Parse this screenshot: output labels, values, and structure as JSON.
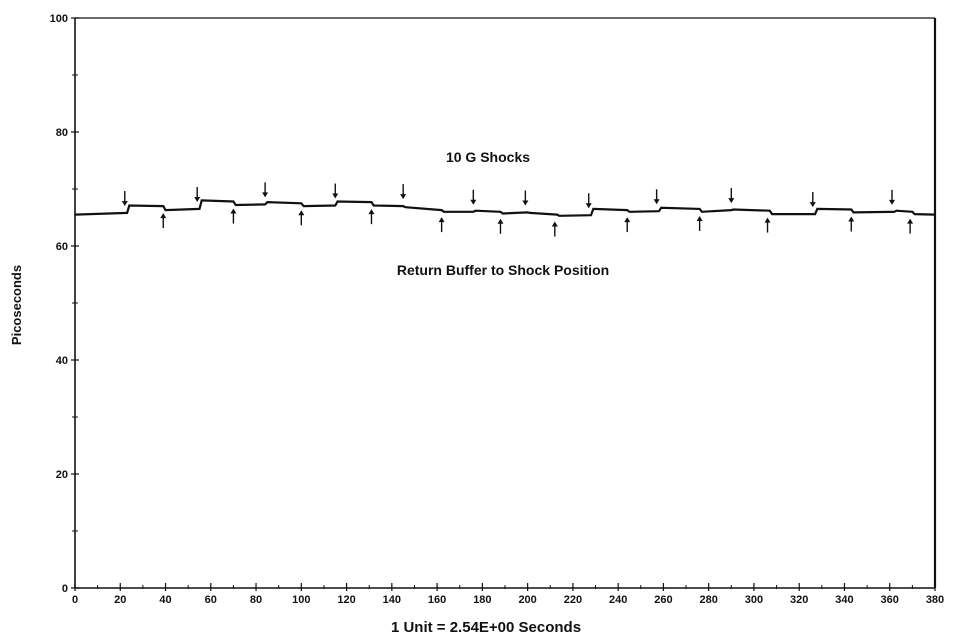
{
  "chart_data": {
    "type": "line",
    "title": "",
    "xlabel": "1 Unit = 2.54E+00 Seconds",
    "ylabel": "Picoseconds",
    "xlim": [
      0,
      380
    ],
    "ylim": [
      0,
      100
    ],
    "x_ticks": [
      "0",
      "20",
      "40",
      "60",
      "80",
      "100",
      "120",
      "140",
      "160",
      "180",
      "200",
      "220",
      "240",
      "260",
      "280",
      "300",
      "320",
      "340",
      "360",
      "380"
    ],
    "y_ticks": [
      "0",
      "20",
      "40",
      "60",
      "80",
      "100"
    ],
    "grid": false,
    "annotations": {
      "shocks": "10 G Shocks",
      "return": "Return Buffer to Shock Position"
    },
    "series": [
      {
        "x": [
          0,
          23,
          24,
          39,
          40,
          55,
          56,
          70,
          71,
          84,
          85,
          100,
          101,
          115,
          116,
          131,
          132,
          145,
          146,
          162,
          163,
          176,
          177,
          188,
          189,
          200,
          201,
          213,
          214,
          228,
          229,
          244,
          245,
          258,
          259,
          276,
          277,
          290,
          291,
          307,
          308,
          327,
          328,
          343,
          344,
          362,
          363,
          370,
          371,
          380
        ],
        "y": [
          65.5,
          65.8,
          67.1,
          67.0,
          66.3,
          66.5,
          68.0,
          67.8,
          67.2,
          67.3,
          67.7,
          67.5,
          67.0,
          67.1,
          67.8,
          67.7,
          67.1,
          67.0,
          66.8,
          66.3,
          66.0,
          66.0,
          66.2,
          66.0,
          65.7,
          65.9,
          65.8,
          65.5,
          65.3,
          65.4,
          66.5,
          66.3,
          66.0,
          66.1,
          66.7,
          66.5,
          66.0,
          66.3,
          66.4,
          66.2,
          65.6,
          65.6,
          66.5,
          66.4,
          65.9,
          66.0,
          66.2,
          66.0,
          65.6,
          65.5
        ]
      }
    ],
    "shock_markers_down": [
      22,
      54,
      84,
      115,
      145,
      176,
      199,
      227,
      257,
      290,
      326,
      361
    ],
    "return_markers_up": [
      39,
      70,
      100,
      131,
      162,
      188,
      212,
      244,
      276,
      306,
      343,
      369
    ]
  }
}
